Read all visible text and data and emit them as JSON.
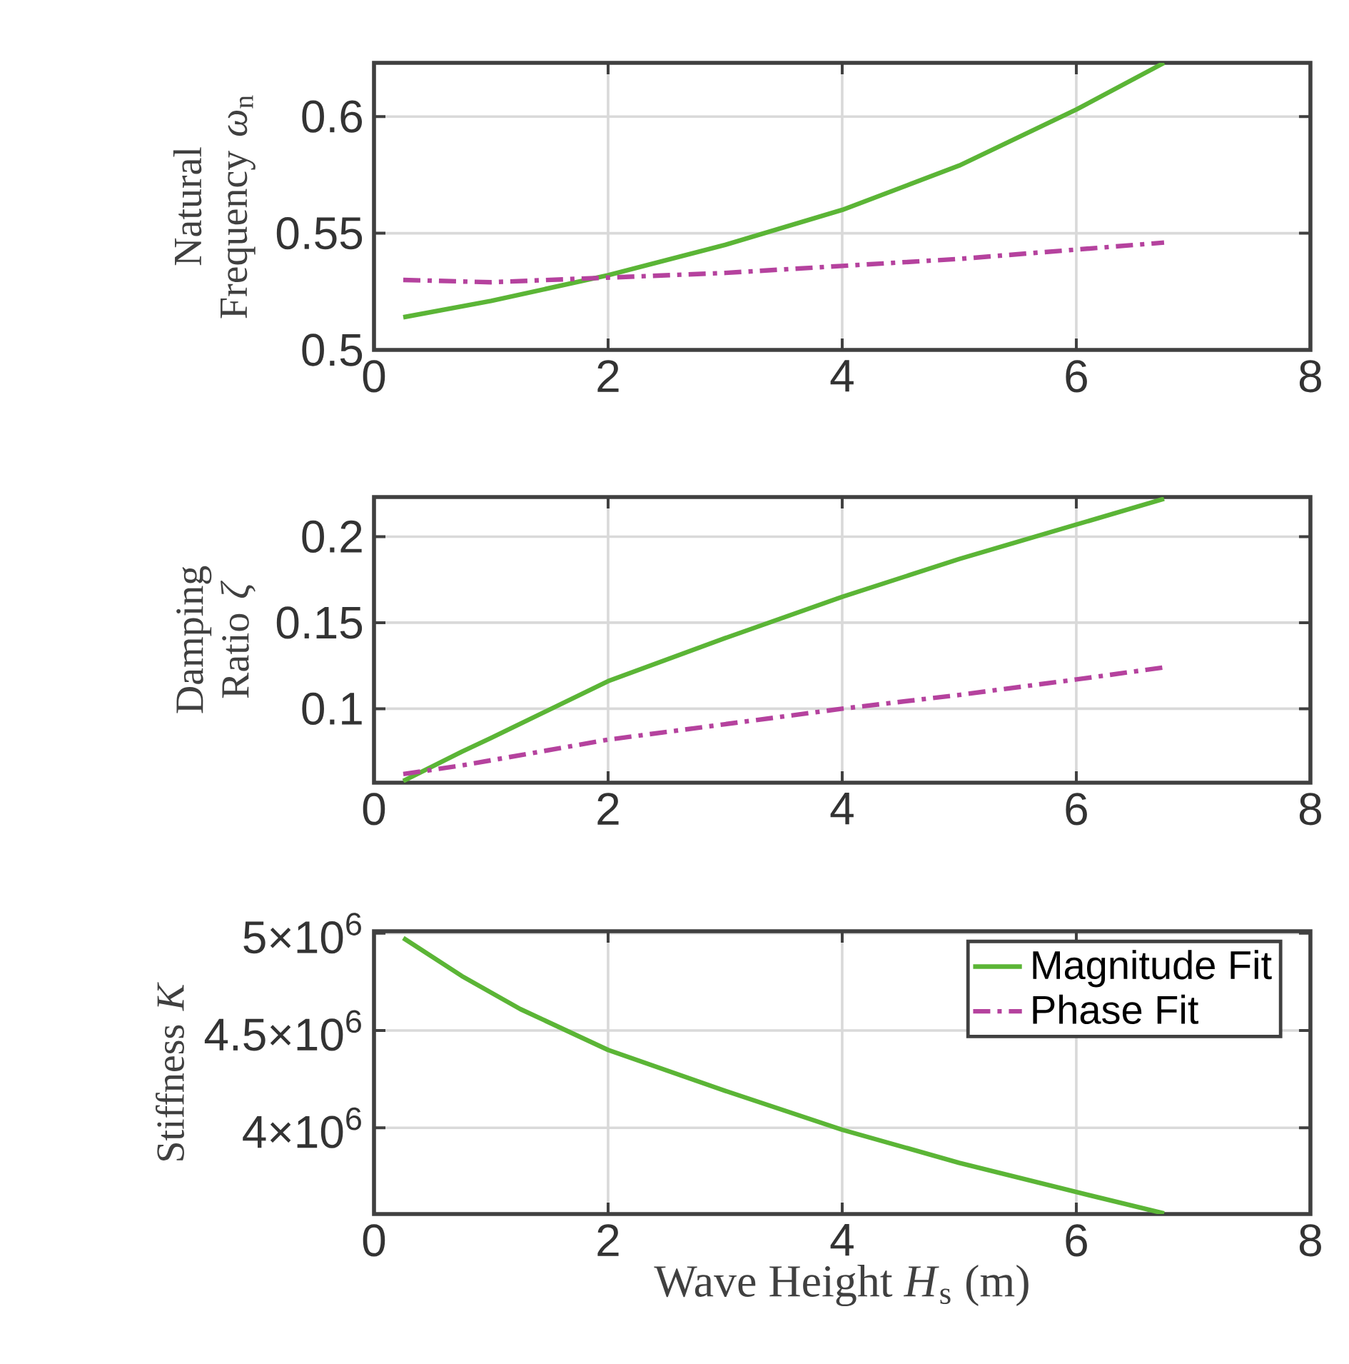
{
  "chart_data": [
    {
      "type": "line",
      "ylabel": "Natural Frequency *ω*$_{n}$",
      "x": [
        0.25,
        1,
        2,
        3,
        4,
        5,
        6,
        6.75
      ],
      "xlim": [
        0,
        8
      ],
      "xticks": [
        0,
        2,
        4,
        6,
        8
      ],
      "ylim": [
        0.5,
        0.623
      ],
      "yticks": [
        0.5,
        0.55,
        0.6
      ],
      "grid": true,
      "series": [
        {
          "color": "#5bb536",
          "line_style": "solid",
          "values": [
            0.514,
            0.521,
            0.532,
            0.545,
            0.56,
            0.579,
            0.603,
            0.623
          ]
        },
        {
          "color": "#b5429e",
          "line_style": "dashdot",
          "values": [
            0.53,
            0.529,
            0.531,
            0.533,
            0.536,
            0.539,
            0.543,
            0.546
          ]
        }
      ]
    },
    {
      "type": "line",
      "ylabel": "Damping Ratio *ζ*",
      "x": [
        0.25,
        0.75,
        1,
        2,
        3,
        4,
        5,
        6,
        6.75
      ],
      "xlim": [
        0,
        8
      ],
      "xticks": [
        0,
        2,
        4,
        6,
        8
      ],
      "ylim": [
        0.057,
        0.223
      ],
      "yticks": [
        0.1,
        0.15,
        0.2
      ],
      "grid": true,
      "series": [
        {
          "color": "#5bb536",
          "line_style": "solid",
          "values": [
            0.058,
            0.075,
            0.083,
            0.116,
            0.141,
            0.165,
            0.187,
            0.207,
            0.222
          ]
        },
        {
          "color": "#b5429e",
          "line_style": "dashdot",
          "values": [
            0.062,
            0.067,
            0.07,
            0.082,
            0.091,
            0.1,
            0.108,
            0.117,
            0.124
          ]
        }
      ]
    },
    {
      "type": "line",
      "ylabel": "Stiffness *K*",
      "xlabel": "Wave Height *H*$_{s}$ (m)",
      "x": [
        0.25,
        0.75,
        1.25,
        2,
        3,
        4,
        5,
        6,
        6.75
      ],
      "xlim": [
        0,
        8
      ],
      "xticks": [
        0,
        2,
        4,
        6,
        8
      ],
      "ylim": [
        3557000,
        5010000
      ],
      "yticks": [
        {
          "value": 4000000,
          "label": "4×10$^{6}$"
        },
        {
          "value": 4500000,
          "label": "4.5×10$^{6}$"
        },
        {
          "value": 5000000,
          "label": "5×10$^{6}$"
        }
      ],
      "grid": true,
      "legend": "top right",
      "series": [
        {
          "name": "Magnitude Fit",
          "color": "#5bb536",
          "line_style": "solid",
          "values": [
            4975000,
            4780000,
            4610000,
            4400000,
            4190000,
            3990000,
            3820000,
            3670000,
            3560000
          ]
        },
        {
          "name": "Phase Fit",
          "color": "#b5429e",
          "line_style": "dashdot",
          "values": [
            null,
            null,
            null,
            null,
            null,
            null,
            null,
            null,
            null
          ]
        }
      ]
    }
  ]
}
